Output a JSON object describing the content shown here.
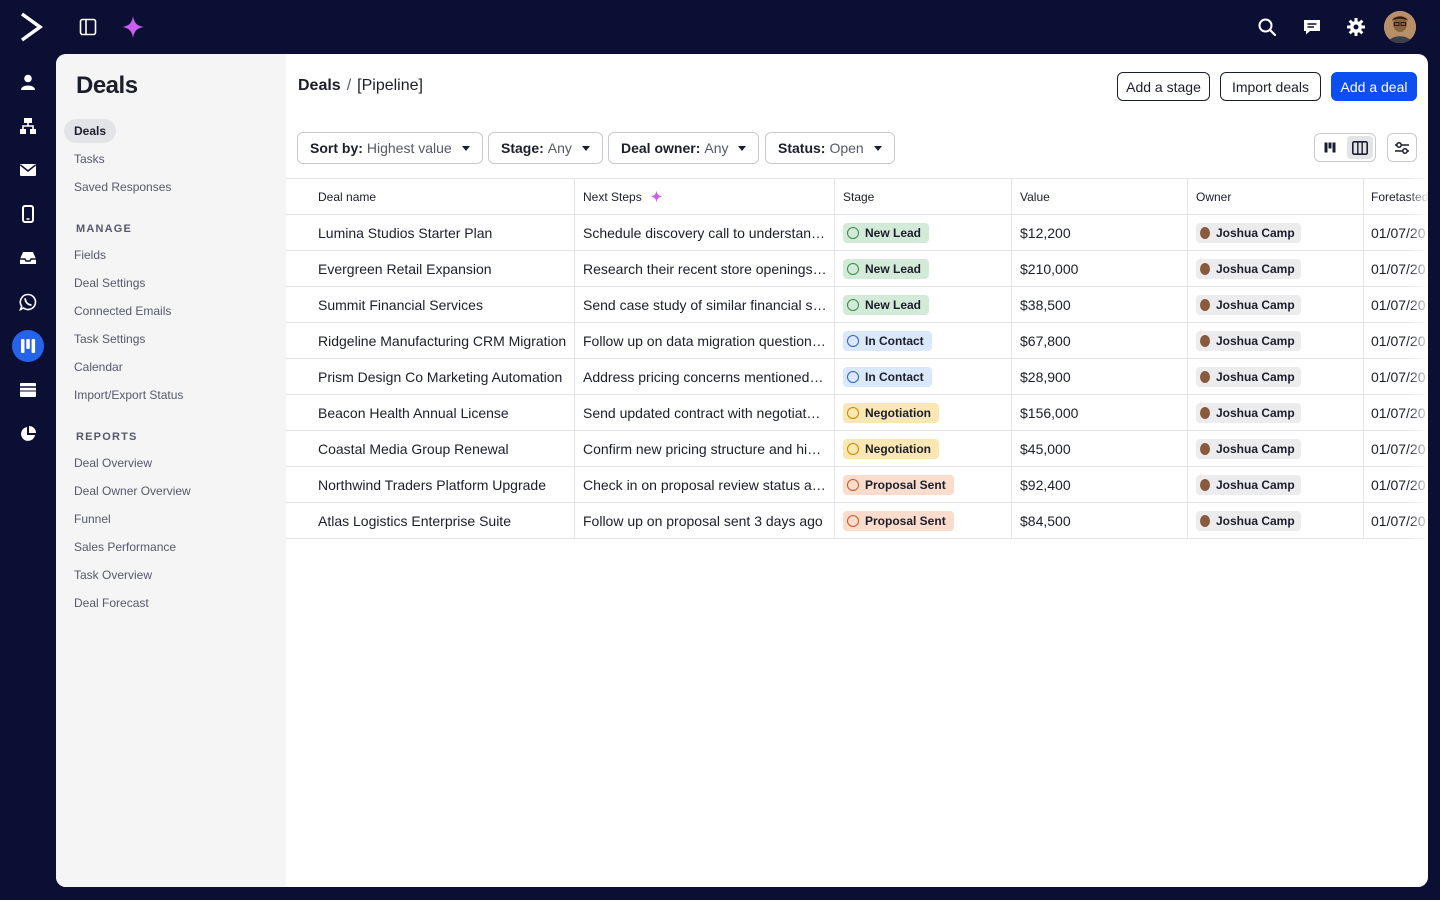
{
  "sidebar": {
    "title": "Deals",
    "items": [
      {
        "label": "Deals",
        "active": true
      },
      {
        "label": "Tasks"
      },
      {
        "label": "Saved Responses"
      }
    ],
    "manage_heading": "MANAGE",
    "manage_items": [
      "Fields",
      "Deal Settings",
      "Connected Emails",
      "Task Settings",
      "Calendar",
      "Import/Export Status"
    ],
    "reports_heading": "REPORTS",
    "reports_items": [
      "Deal Overview",
      "Deal Owner Overview",
      "Funnel",
      "Sales Performance",
      "Task Overview",
      "Deal Forecast"
    ]
  },
  "header": {
    "breadcrumb_root": "Deals",
    "breadcrumb_sep": "/",
    "breadcrumb_current": "[Pipeline]",
    "add_stage": "Add a stage",
    "import_deals": "Import deals",
    "add_deal": "Add a deal"
  },
  "filters": [
    {
      "label": "Sort by:",
      "value": "Highest value"
    },
    {
      "label": "Stage:",
      "value": "Any"
    },
    {
      "label": "Deal owner:",
      "value": "Any"
    },
    {
      "label": "Status:",
      "value": "Open"
    }
  ],
  "table": {
    "columns": [
      "Deal name",
      "Next Steps",
      "Stage",
      "Value",
      "Owner",
      "Foretasted"
    ],
    "rows": [
      {
        "name": "Lumina Studios Starter Plan",
        "next": "Schedule discovery call to understand their needs",
        "stage": "New Lead",
        "value": "$12,200",
        "owner": "Joshua Camp",
        "fore": "01/07/20"
      },
      {
        "name": "Evergreen Retail Expansion",
        "next": "Research their recent store openings and growth",
        "stage": "New Lead",
        "value": "$210,000",
        "owner": "Joshua Camp",
        "fore": "01/07/20"
      },
      {
        "name": "Summit Financial Services",
        "next": "Send case study of similar financial services client",
        "stage": "New Lead",
        "value": "$38,500",
        "owner": "Joshua Camp",
        "fore": "01/07/20"
      },
      {
        "name": "Ridgeline Manufacturing CRM Migration",
        "next": "Follow up on data migration questions from call",
        "stage": "In Contact",
        "value": "$67,800",
        "owner": "Joshua Camp",
        "fore": "01/07/20"
      },
      {
        "name": "Prism Design Co Marketing Automation",
        "next": "Address pricing concerns mentioned in last meeting",
        "stage": "In Contact",
        "value": "$28,900",
        "owner": "Joshua Camp",
        "fore": "01/07/20"
      },
      {
        "name": "Beacon Health Annual License",
        "next": "Send updated contract with negotiated terms",
        "stage": "Negotiation",
        "value": "$156,000",
        "owner": "Joshua Camp",
        "fore": "01/07/20"
      },
      {
        "name": "Coastal Media Group Renewal",
        "next": "Confirm new pricing structure and highlight value",
        "stage": "Negotiation",
        "value": "$45,000",
        "owner": "Joshua Camp",
        "fore": "01/07/20"
      },
      {
        "name": "Northwind Traders Platform Upgrade",
        "next": "Check in on proposal review status and answer questions",
        "stage": "Proposal Sent",
        "value": "$92,400",
        "owner": "Joshua Camp",
        "fore": "01/07/20"
      },
      {
        "name": "Atlas Logistics Enterprise Suite",
        "next": "Follow up on proposal sent 3 days ago",
        "stage": "Proposal Sent",
        "value": "$84,500",
        "owner": "Joshua Camp",
        "fore": "01/07/20"
      }
    ]
  },
  "stage_colors": {
    "New Lead": {
      "bg": "#d4ead8",
      "dot": "#3b8a4b"
    },
    "In Contact": {
      "bg": "#dbe7fb",
      "dot": "#2f5fd0"
    },
    "Negotiation": {
      "bg": "#fbe7b2",
      "dot": "#c48a00"
    },
    "Proposal Sent": {
      "bg": "#fcdccc",
      "dot": "#d3541f"
    }
  },
  "icons": {
    "top": [
      "logo-icon",
      "panel-toggle-icon",
      "sparkle-icon",
      "search-icon",
      "chat-icon",
      "gear-icon",
      "avatar"
    ],
    "rail": [
      "contacts-icon",
      "automations-icon",
      "mail-icon",
      "phone-icon",
      "inbox-icon",
      "whatsapp-icon",
      "deals-icon",
      "site-icon",
      "reports-icon"
    ]
  }
}
